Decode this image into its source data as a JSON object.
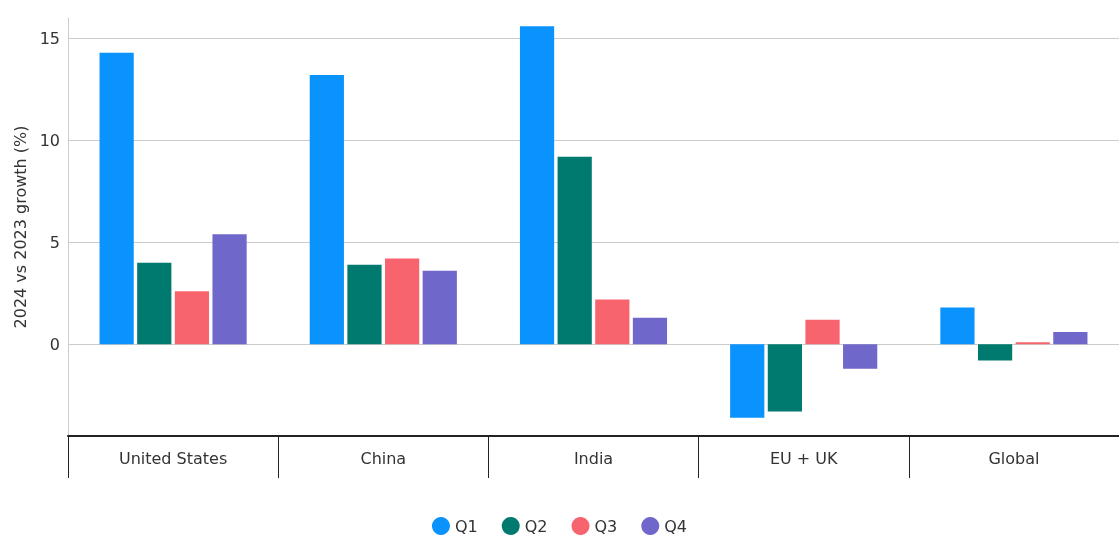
{
  "chart_data": {
    "type": "bar",
    "ylabel": "2024 vs 2023 growth (%)",
    "categories": [
      "United States",
      "China",
      "India",
      "EU + UK",
      "Global"
    ],
    "series": [
      {
        "name": "Q1",
        "color": "#0a93fc",
        "values": [
          14.3,
          13.2,
          15.6,
          -3.6,
          1.8
        ]
      },
      {
        "name": "Q2",
        "color": "#007a6e",
        "values": [
          4.0,
          3.9,
          9.2,
          -3.3,
          -0.8
        ]
      },
      {
        "name": "Q3",
        "color": "#f7646d",
        "values": [
          2.6,
          4.2,
          2.2,
          1.2,
          0.1
        ]
      },
      {
        "name": "Q4",
        "color": "#6f67c9",
        "values": [
          5.4,
          3.6,
          1.3,
          -1.2,
          0.6
        ]
      }
    ],
    "ylim": [
      -4.5,
      16
    ],
    "yticks": [
      0,
      5,
      10,
      15
    ],
    "grid": "y",
    "legend": "bottom"
  }
}
